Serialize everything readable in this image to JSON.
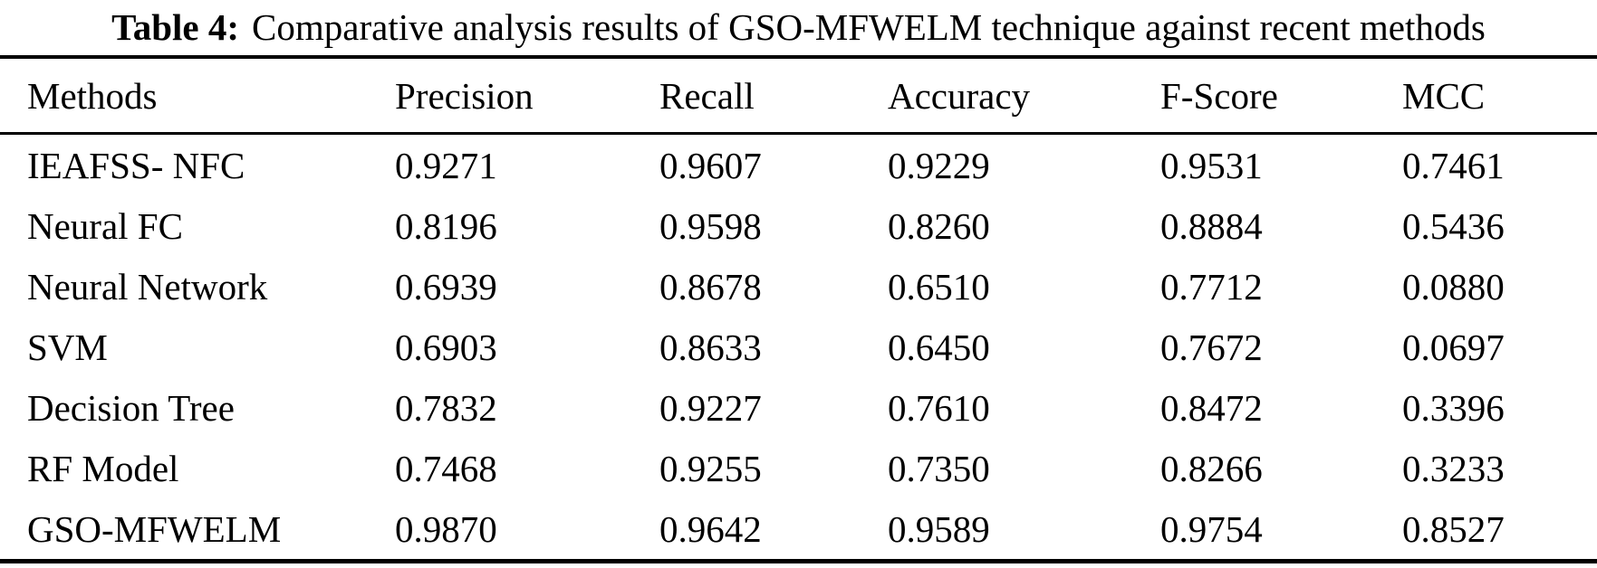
{
  "caption": {
    "label": "Table 4:",
    "text": "Comparative analysis results of GSO-MFWELM technique against recent methods"
  },
  "table": {
    "columns": [
      "Methods",
      "Precision",
      "Recall",
      "Accuracy",
      "F-Score",
      "MCC"
    ],
    "rows": [
      {
        "method": "IEAFSS- NFC",
        "precision": "0.9271",
        "recall": "0.9607",
        "accuracy": "0.9229",
        "f_score": "0.9531",
        "mcc": "0.7461"
      },
      {
        "method": "Neural FC",
        "precision": "0.8196",
        "recall": "0.9598",
        "accuracy": "0.8260",
        "f_score": "0.8884",
        "mcc": "0.5436"
      },
      {
        "method": "Neural Network",
        "precision": "0.6939",
        "recall": "0.8678",
        "accuracy": "0.6510",
        "f_score": "0.7712",
        "mcc": "0.0880"
      },
      {
        "method": "SVM",
        "precision": "0.6903",
        "recall": "0.8633",
        "accuracy": "0.6450",
        "f_score": "0.7672",
        "mcc": "0.0697"
      },
      {
        "method": "Decision Tree",
        "precision": "0.7832",
        "recall": "0.9227",
        "accuracy": "0.7610",
        "f_score": "0.8472",
        "mcc": "0.3396"
      },
      {
        "method": "RF Model",
        "precision": "0.7468",
        "recall": "0.9255",
        "accuracy": "0.7350",
        "f_score": "0.8266",
        "mcc": "0.3233"
      },
      {
        "method": "GSO-MFWELM",
        "precision": "0.9870",
        "recall": "0.9642",
        "accuracy": "0.9589",
        "f_score": "0.9754",
        "mcc": "0.8527"
      }
    ]
  }
}
